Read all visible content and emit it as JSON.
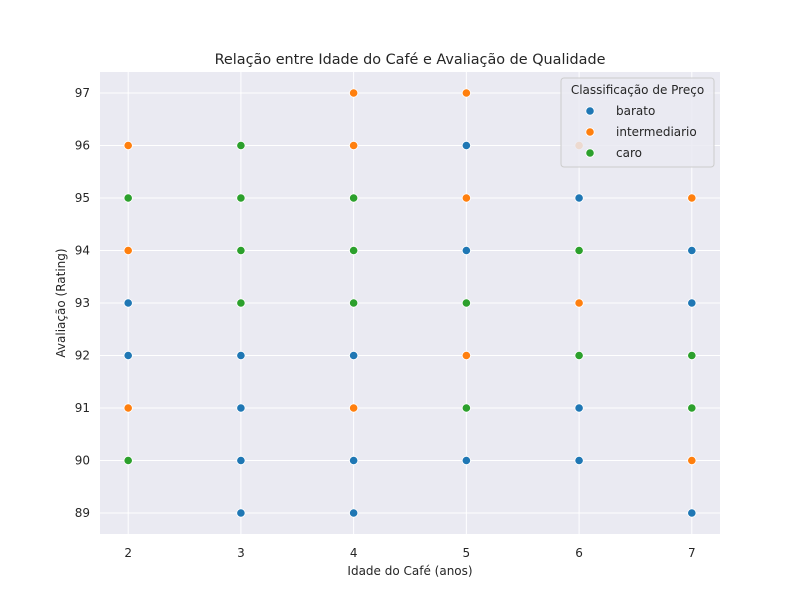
{
  "chart_data": {
    "type": "scatter",
    "title": "Relação entre Idade do Café e Avaliação de Qualidade",
    "xlabel": "Idade do Café (anos)",
    "ylabel": "Avaliação (Rating)",
    "xlim": [
      1.75,
      7.25
    ],
    "ylim": [
      88.6,
      97.4
    ],
    "xticks": [
      2,
      3,
      4,
      5,
      6,
      7
    ],
    "yticks": [
      89,
      90,
      91,
      92,
      93,
      94,
      95,
      96,
      97
    ],
    "grid": true,
    "background": "#eaeaf2",
    "legend": {
      "title": "Classificação de Preço",
      "placement": "top-right"
    },
    "series": [
      {
        "name": "barato",
        "color": "#1f77b4",
        "points": [
          [
            2,
            93
          ],
          [
            2,
            92
          ],
          [
            3,
            92
          ],
          [
            3,
            91
          ],
          [
            3,
            90
          ],
          [
            3,
            89
          ],
          [
            4,
            92
          ],
          [
            4,
            90
          ],
          [
            4,
            89
          ],
          [
            5,
            96
          ],
          [
            5,
            94
          ],
          [
            5,
            90
          ],
          [
            6,
            95
          ],
          [
            6,
            91
          ],
          [
            6,
            90
          ],
          [
            7,
            94
          ],
          [
            7,
            93
          ],
          [
            7,
            89
          ]
        ]
      },
      {
        "name": "intermediario",
        "color": "#ff7f0e",
        "points": [
          [
            2,
            96
          ],
          [
            2,
            94
          ],
          [
            2,
            91
          ],
          [
            4,
            97
          ],
          [
            4,
            96
          ],
          [
            4,
            91
          ],
          [
            5,
            97
          ],
          [
            5,
            95
          ],
          [
            5,
            92
          ],
          [
            6,
            96
          ],
          [
            6,
            93
          ],
          [
            7,
            95
          ],
          [
            7,
            90
          ]
        ]
      },
      {
        "name": "caro",
        "color": "#2ca02c",
        "points": [
          [
            2,
            95
          ],
          [
            2,
            90
          ],
          [
            3,
            96
          ],
          [
            3,
            95
          ],
          [
            3,
            94
          ],
          [
            3,
            93
          ],
          [
            4,
            95
          ],
          [
            4,
            94
          ],
          [
            4,
            93
          ],
          [
            5,
            93
          ],
          [
            5,
            91
          ],
          [
            6,
            94
          ],
          [
            6,
            92
          ],
          [
            7,
            92
          ],
          [
            7,
            91
          ]
        ]
      }
    ]
  }
}
